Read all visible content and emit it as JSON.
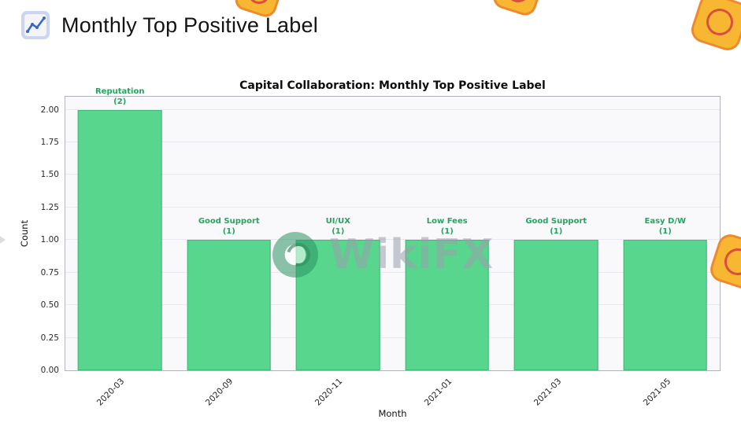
{
  "header": {
    "title": "Monthly Top Positive Label",
    "icon": "line-chart-icon"
  },
  "chart_data": {
    "type": "bar",
    "title": "Capital Collaboration: Monthly Top Positive Label",
    "xlabel": "Month",
    "ylabel": "Count",
    "categories": [
      "2020-03",
      "2020-09",
      "2020-11",
      "2021-01",
      "2021-03",
      "2021-05"
    ],
    "values": [
      2,
      1,
      1,
      1,
      1,
      1
    ],
    "annotations": [
      [
        "Reputation",
        "(2)"
      ],
      [
        "Good Support",
        "(1)"
      ],
      [
        "UI/UX",
        "(1)"
      ],
      [
        "Low Fees",
        "(1)"
      ],
      [
        "Good Support",
        "(1)"
      ],
      [
        "Easy D/W",
        "(1)"
      ]
    ],
    "yticks": [
      "0.00",
      "0.25",
      "0.50",
      "0.75",
      "1.00",
      "1.25",
      "1.50",
      "1.75",
      "2.00"
    ],
    "ylim": [
      0,
      2.1
    ],
    "grid": true,
    "legend": "none",
    "colors": {
      "bar_fill": "#58d68d",
      "bar_edge": "#3cb878",
      "annotation": "#27a35f"
    }
  },
  "watermark": {
    "text": "WikiFX"
  }
}
